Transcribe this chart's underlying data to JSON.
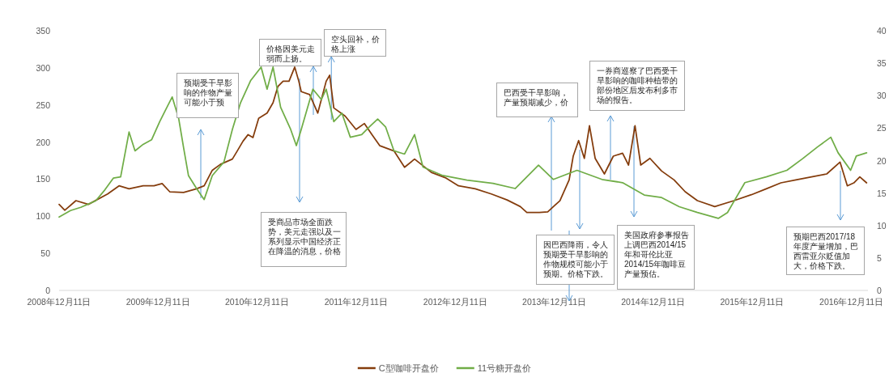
{
  "chart_data": {
    "type": "line",
    "series": [
      {
        "name": "C型咖啡开盘价",
        "color": "#843c0c",
        "x": [
          "2008-12-11",
          "2009-01-01",
          "2009-02-11",
          "2009-03-29",
          "2009-06-08",
          "2009-07-20",
          "2009-08-26",
          "2009-10-17",
          "2009-11-26",
          "2009-12-26",
          "2010-01-23",
          "2010-03-15",
          "2010-05-02",
          "2010-05-30",
          "2010-06-29",
          "2010-07-29",
          "2010-09-11",
          "2010-09-29",
          "2010-10-20",
          "2010-11-08",
          "2010-11-26",
          "2010-12-17",
          "2011-01-17",
          "2011-02-08",
          "2011-02-26",
          "2011-03-17",
          "2011-04-08",
          "2011-04-29",
          "2011-05-14",
          "2011-05-23",
          "2011-06-23",
          "2011-07-23",
          "2011-08-23",
          "2011-09-05",
          "2011-09-20",
          "2011-11-01",
          "2011-12-11",
          "2012-01-11",
          "2012-02-08",
          "2012-03-08",
          "2012-04-29",
          "2012-06-07",
          "2012-07-14",
          "2012-09-14",
          "2012-11-04",
          "2012-12-23",
          "2013-02-23",
          "2013-04-23",
          "2013-06-20",
          "2013-08-08",
          "2013-09-01",
          "2013-10-17",
          "2013-11-17",
          "2014-01-01",
          "2014-02-04",
          "2014-02-19",
          "2014-03-11",
          "2014-04-01",
          "2014-04-20",
          "2014-05-11",
          "2014-06-14",
          "2014-07-17",
          "2014-08-20",
          "2014-09-11",
          "2014-10-05",
          "2014-10-26",
          "2014-11-29",
          "2015-01-11",
          "2015-02-26",
          "2015-04-08",
          "2015-05-23",
          "2015-07-26",
          "2015-10-05",
          "2015-12-08",
          "2016-02-01",
          "2016-03-26",
          "2016-05-20",
          "2016-07-17",
          "2016-09-11",
          "2016-10-30",
          "2016-11-26",
          "2016-12-20",
          "2017-01-11",
          "2017-02-05"
        ],
        "values": [
          116,
          108,
          121,
          116,
          130,
          141,
          137,
          141,
          141,
          144,
          133,
          132,
          137,
          141,
          162,
          170,
          177,
          188,
          201,
          210,
          206,
          232,
          239,
          253,
          275,
          282,
          282,
          301,
          282,
          268,
          264,
          239,
          282,
          290,
          246,
          235,
          217,
          225,
          210,
          195,
          188,
          166,
          177,
          159,
          152,
          141,
          137,
          130,
          122,
          113,
          105,
          105,
          106,
          121,
          149,
          181,
          202,
          178,
          222,
          178,
          157,
          181,
          185,
          169,
          222,
          169,
          178,
          161,
          149,
          133,
          121,
          113,
          121,
          129,
          137,
          145,
          149,
          153,
          157,
          173,
          141,
          145,
          153,
          145
        ]
      },
      {
        "name": "11号糖开盘价",
        "color": "#70ad47",
        "axis": "y2",
        "x": [
          "2008-12-11",
          "2009-01-22",
          "2009-03-01",
          "2009-04-25",
          "2009-05-29",
          "2009-06-29",
          "2009-07-26",
          "2009-08-26",
          "2009-09-17",
          "2009-10-17",
          "2009-11-17",
          "2009-12-17",
          "2010-01-10",
          "2010-02-01",
          "2010-02-25",
          "2010-03-15",
          "2010-04-02",
          "2010-05-02",
          "2010-05-30",
          "2010-06-29",
          "2010-08-11",
          "2010-09-11",
          "2010-10-11",
          "2010-11-17",
          "2010-12-26",
          "2011-01-17",
          "2011-02-08",
          "2011-03-08",
          "2011-04-14",
          "2011-05-05",
          "2011-05-23",
          "2011-07-05",
          "2011-08-05",
          "2011-08-23",
          "2011-09-20",
          "2011-10-20",
          "2011-11-20",
          "2012-01-01",
          "2012-01-29",
          "2012-02-29",
          "2012-03-29",
          "2012-04-29",
          "2012-06-07",
          "2012-07-14",
          "2012-08-14",
          "2012-10-26",
          "2013-01-23",
          "2013-04-29",
          "2013-07-20",
          "2013-10-14",
          "2013-12-08",
          "2014-03-05",
          "2014-06-05",
          "2014-08-20",
          "2014-11-08",
          "2015-01-11",
          "2015-03-17",
          "2015-05-23",
          "2015-08-08",
          "2015-09-11",
          "2015-11-14",
          "2016-02-01",
          "2016-04-17",
          "2016-06-14",
          "2016-08-08",
          "2016-09-26",
          "2016-10-23",
          "2016-12-08",
          "2016-12-29",
          "2017-02-05"
        ],
        "values": [
          11.3,
          12.3,
          12.8,
          13.8,
          15.5,
          17.3,
          17.5,
          24.4,
          21.5,
          22.5,
          23.2,
          26,
          28,
          29.8,
          26.5,
          22,
          17.7,
          15.7,
          14,
          17.7,
          19.8,
          24.8,
          28.9,
          32.3,
          34.4,
          31,
          34.4,
          28.2,
          24.8,
          22.3,
          24.8,
          31,
          29.4,
          31,
          26,
          27.3,
          23.6,
          24,
          25.2,
          26.4,
          25.2,
          21.5,
          21,
          24,
          19,
          17.7,
          17,
          16.5,
          15.7,
          19.3,
          17.1,
          18.5,
          17.1,
          16.6,
          14.7,
          14.3,
          12.9,
          12,
          11.1,
          12,
          16.6,
          17.5,
          18.5,
          20.3,
          22.1,
          23.6,
          21.2,
          18.5,
          20.7,
          21.2
        ]
      }
    ],
    "xlim": [
      "2008-12-11",
      "2017-02-10"
    ],
    "xticks": [
      {
        "value": "2008-12-11",
        "label": "2008年12月11日"
      },
      {
        "value": "2009-12-11",
        "label": "2009年12月11日"
      },
      {
        "value": "2010-12-11",
        "label": "2010年12月11日"
      },
      {
        "value": "2011-12-11",
        "label": "2011年12月11日"
      },
      {
        "value": "2012-12-11",
        "label": "2012年12月11日"
      },
      {
        "value": "2013-12-11",
        "label": "2013年12月11日"
      },
      {
        "value": "2014-12-11",
        "label": "2014年12月11日"
      },
      {
        "value": "2015-12-11",
        "label": "2015年12月11日"
      },
      {
        "value": "2016-12-11",
        "label": "2016年12月11日"
      }
    ],
    "ylim": [
      0,
      350
    ],
    "yticks": [
      0,
      50,
      100,
      150,
      200,
      250,
      300,
      350
    ],
    "y2lim": [
      0,
      40
    ],
    "y2ticks": [
      0,
      5,
      10,
      15,
      20,
      25,
      30,
      35,
      40
    ],
    "legend": "bottom",
    "annotations": [
      "预期受干旱影响的作物产量可能小于预",
      "价格因美元走弱而上扬。",
      {
        "text": "空头回补，价格上涨",
        "x": "2011-09-11",
        "y": 230
      },
      "巴西受干旱影响，产量预期减少，价",
      "一券商巡察了巴西受干旱影响的咖啡种植带的部份地区后发布利多市场的报告。",
      "受商品市场全面跌势，美元走强以及一系列显示中国经济正在降温的消息，价格",
      "因巴西降雨，令人预期受干旱影响的作物规模可能小于预期。价格下跌。",
      "美国政府参事报告上调巴西2014/15年和哥伦比亚2014/15年咖啡豆产量预估。",
      "预期巴西2017/18年度产量增加，巴西雷亚尔贬值加大，价格下跌。"
    ]
  }
}
